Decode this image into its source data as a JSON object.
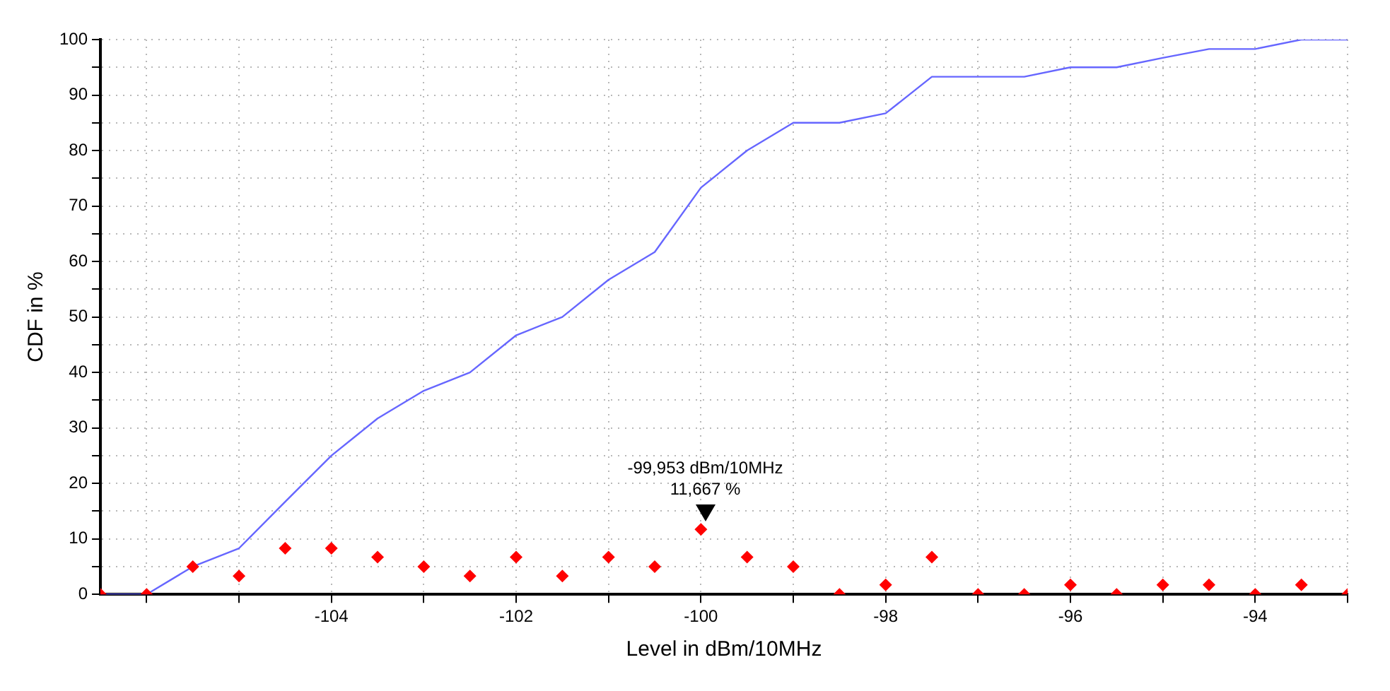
{
  "chart_data": {
    "type": "line",
    "xlabel": "Level in dBm/10MHz",
    "ylabel": "CDF in %",
    "x": [
      -106.5,
      -106,
      -105.5,
      -105,
      -104.5,
      -104,
      -103.5,
      -103,
      -102.5,
      -102,
      -101.5,
      -101,
      -100.5,
      -100,
      -99.5,
      -99,
      -98.5,
      -98,
      -97.5,
      -97,
      -96.5,
      -96,
      -95.5,
      -95,
      -94.5,
      -94,
      -93.5,
      -93
    ],
    "series": [
      {
        "type": "line",
        "color": "#6666ff",
        "marker": "none",
        "values": [
          0,
          0,
          5,
          8.3,
          16.7,
          25,
          31.7,
          36.7,
          40,
          46.7,
          50,
          56.7,
          61.7,
          73.3,
          80,
          85,
          85,
          86.7,
          93.3,
          93.3,
          93.3,
          95,
          95,
          96.7,
          98.3,
          98.3,
          100,
          100
        ]
      },
      {
        "type": "scatter",
        "color": "#ff0000",
        "marker": "diamond",
        "values": [
          0,
          0,
          5,
          3.3,
          8.3,
          8.3,
          6.7,
          5,
          3.3,
          6.7,
          3.3,
          6.7,
          5,
          11.7,
          6.7,
          5,
          0,
          1.7,
          6.7,
          0,
          0,
          1.7,
          0,
          1.7,
          1.7,
          0,
          1.7,
          0
        ]
      }
    ],
    "xlim": [
      -106.5,
      -93
    ],
    "xticks": [
      {
        "value": -106,
        "label": null
      },
      {
        "value": -105,
        "label": null
      },
      -104,
      {
        "value": -103,
        "label": null
      },
      -102,
      {
        "value": -101,
        "label": null
      },
      -100,
      {
        "value": -99,
        "label": null
      },
      -98,
      {
        "value": -97,
        "label": null
      },
      -96,
      {
        "value": -95,
        "label": null
      },
      -94,
      {
        "value": -93,
        "label": null
      }
    ],
    "ylim": [
      0,
      100
    ],
    "yticks": [
      0,
      {
        "value": 5,
        "label": null
      },
      10,
      {
        "value": 15,
        "label": null
      },
      20,
      {
        "value": 25,
        "label": null
      },
      30,
      {
        "value": 35,
        "label": null
      },
      40,
      {
        "value": 45,
        "label": null
      },
      50,
      {
        "value": 55,
        "label": null
      },
      60,
      {
        "value": 65,
        "label": null
      },
      70,
      {
        "value": 75,
        "label": null
      },
      80,
      {
        "value": 85,
        "label": null
      },
      90,
      {
        "value": 95,
        "label": null
      },
      100
    ],
    "grid": true,
    "legend": false,
    "annotations": [
      {
        "text": "-99,953 dBm/10MHz\n11,667 %",
        "x": -99.953,
        "y": 11.667
      }
    ]
  }
}
